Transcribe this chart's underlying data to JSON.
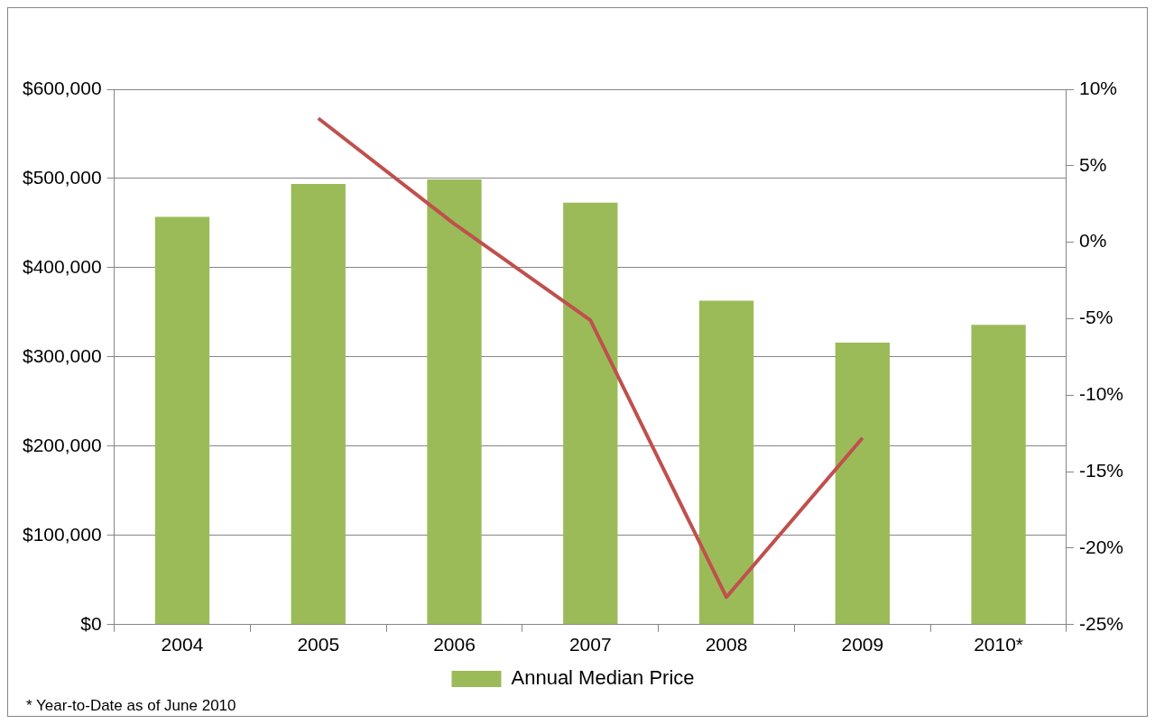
{
  "chart_data": {
    "type": "bar",
    "categories": [
      "2004",
      "2005",
      "2006",
      "2007",
      "2008",
      "2009",
      "2010*"
    ],
    "series": [
      {
        "name": "Annual Median Price",
        "color": "#9bbb59",
        "values": [
          457000,
          494000,
          499000,
          473000,
          363000,
          316000,
          336000
        ]
      },
      {
        "type": "line",
        "axis": "y2",
        "color": "#c0504d",
        "values": [
          null,
          8.1,
          1.2,
          -5.1,
          -23.2,
          -12.8,
          null
        ]
      }
    ],
    "ylim": [
      0,
      600000
    ],
    "yticks": [
      {
        "value": 0,
        "label": "$0"
      },
      {
        "value": 100000,
        "label": "$100,000"
      },
      {
        "value": 200000,
        "label": "$200,000"
      },
      {
        "value": 300000,
        "label": "$300,000"
      },
      {
        "value": 400000,
        "label": "$400,000"
      },
      {
        "value": 500000,
        "label": "$500,000"
      },
      {
        "value": 600000,
        "label": "$600,000"
      }
    ],
    "y2lim": [
      -25,
      10
    ],
    "y2ticks": [
      {
        "value": -25,
        "label": "-25%"
      },
      {
        "value": -20,
        "label": "-20%"
      },
      {
        "value": -15,
        "label": "-15%"
      },
      {
        "value": -10,
        "label": "-10%"
      },
      {
        "value": -5,
        "label": "-5%"
      },
      {
        "value": 0,
        "label": "0%"
      },
      {
        "value": 5,
        "label": "5%"
      },
      {
        "value": 10,
        "label": "10%"
      }
    ],
    "grid": "y",
    "legend": "bottom",
    "marker": "none",
    "annotations": [
      "* Year-to-Date as of June 2010"
    ]
  }
}
